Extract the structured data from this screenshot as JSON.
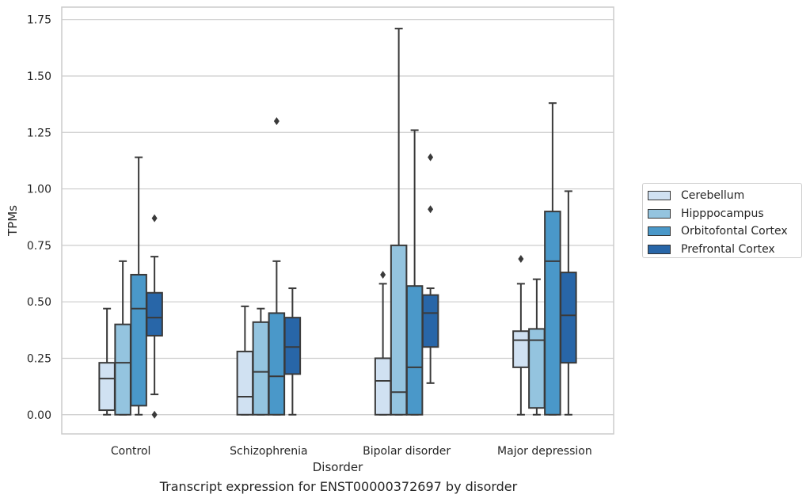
{
  "caption": "Transcript expression for ENST00000372697 by disorder",
  "chart_data": {
    "type": "box",
    "title": "",
    "xlabel": "Disorder",
    "ylabel": "TPMs",
    "ylim": [
      -0.085,
      1.805
    ],
    "yticks": [
      "0.00",
      "0.25",
      "0.50",
      "0.75",
      "1.00",
      "1.25",
      "1.50",
      "1.75"
    ],
    "ytick_values": [
      0,
      0.25,
      0.5,
      0.75,
      1.0,
      1.25,
      1.5,
      1.75
    ],
    "grid": "horizontal",
    "legend_position": "right",
    "categories": [
      "Control",
      "Schizophrenia",
      "Bipolar disorder",
      "Major depression"
    ],
    "series": [
      {
        "name": "Cerebellum",
        "color": "#d0e1f2",
        "boxes": [
          {
            "whislo": 0.0,
            "q1": 0.02,
            "med": 0.16,
            "q3": 0.23,
            "whishi": 0.47,
            "fliers": []
          },
          {
            "whislo": 0.0,
            "q1": 0.0,
            "med": 0.08,
            "q3": 0.28,
            "whishi": 0.48,
            "fliers": []
          },
          {
            "whislo": 0.0,
            "q1": 0.0,
            "med": 0.15,
            "q3": 0.25,
            "whishi": 0.58,
            "fliers": [
              0.62
            ]
          },
          {
            "whislo": 0.0,
            "q1": 0.21,
            "med": 0.33,
            "q3": 0.37,
            "whishi": 0.58,
            "fliers": [
              0.69
            ]
          }
        ]
      },
      {
        "name": "Hipppocampus",
        "color": "#94c4df",
        "boxes": [
          {
            "whislo": 0.0,
            "q1": 0.0,
            "med": 0.23,
            "q3": 0.4,
            "whishi": 0.68,
            "fliers": []
          },
          {
            "whislo": 0.0,
            "q1": 0.0,
            "med": 0.19,
            "q3": 0.41,
            "whishi": 0.47,
            "fliers": []
          },
          {
            "whislo": 0.0,
            "q1": 0.0,
            "med": 0.1,
            "q3": 0.75,
            "whishi": 1.71,
            "fliers": []
          },
          {
            "whislo": 0.0,
            "q1": 0.03,
            "med": 0.33,
            "q3": 0.38,
            "whishi": 0.6,
            "fliers": []
          }
        ]
      },
      {
        "name": "Orbitofontal Cortex",
        "color": "#4a98c9",
        "boxes": [
          {
            "whislo": 0.0,
            "q1": 0.04,
            "med": 0.47,
            "q3": 0.62,
            "whishi": 1.14,
            "fliers": []
          },
          {
            "whislo": 0.0,
            "q1": 0.0,
            "med": 0.17,
            "q3": 0.45,
            "whishi": 0.68,
            "fliers": [
              1.3
            ]
          },
          {
            "whislo": 0.0,
            "q1": 0.0,
            "med": 0.21,
            "q3": 0.57,
            "whishi": 1.26,
            "fliers": []
          },
          {
            "whislo": 0.0,
            "q1": 0.0,
            "med": 0.68,
            "q3": 0.9,
            "whishi": 1.38,
            "fliers": []
          }
        ]
      },
      {
        "name": "Prefrontal Cortex",
        "color": "#2866a8",
        "boxes": [
          {
            "whislo": 0.09,
            "q1": 0.35,
            "med": 0.43,
            "q3": 0.54,
            "whishi": 0.7,
            "fliers": [
              0.87,
              0.0
            ]
          },
          {
            "whislo": 0.0,
            "q1": 0.18,
            "med": 0.3,
            "q3": 0.43,
            "whishi": 0.56,
            "fliers": []
          },
          {
            "whislo": 0.14,
            "q1": 0.3,
            "med": 0.45,
            "q3": 0.53,
            "whishi": 0.56,
            "fliers": [
              1.14,
              0.91
            ]
          },
          {
            "whislo": 0.0,
            "q1": 0.23,
            "med": 0.44,
            "q3": 0.63,
            "whishi": 0.99,
            "fliers": []
          }
        ]
      }
    ]
  }
}
